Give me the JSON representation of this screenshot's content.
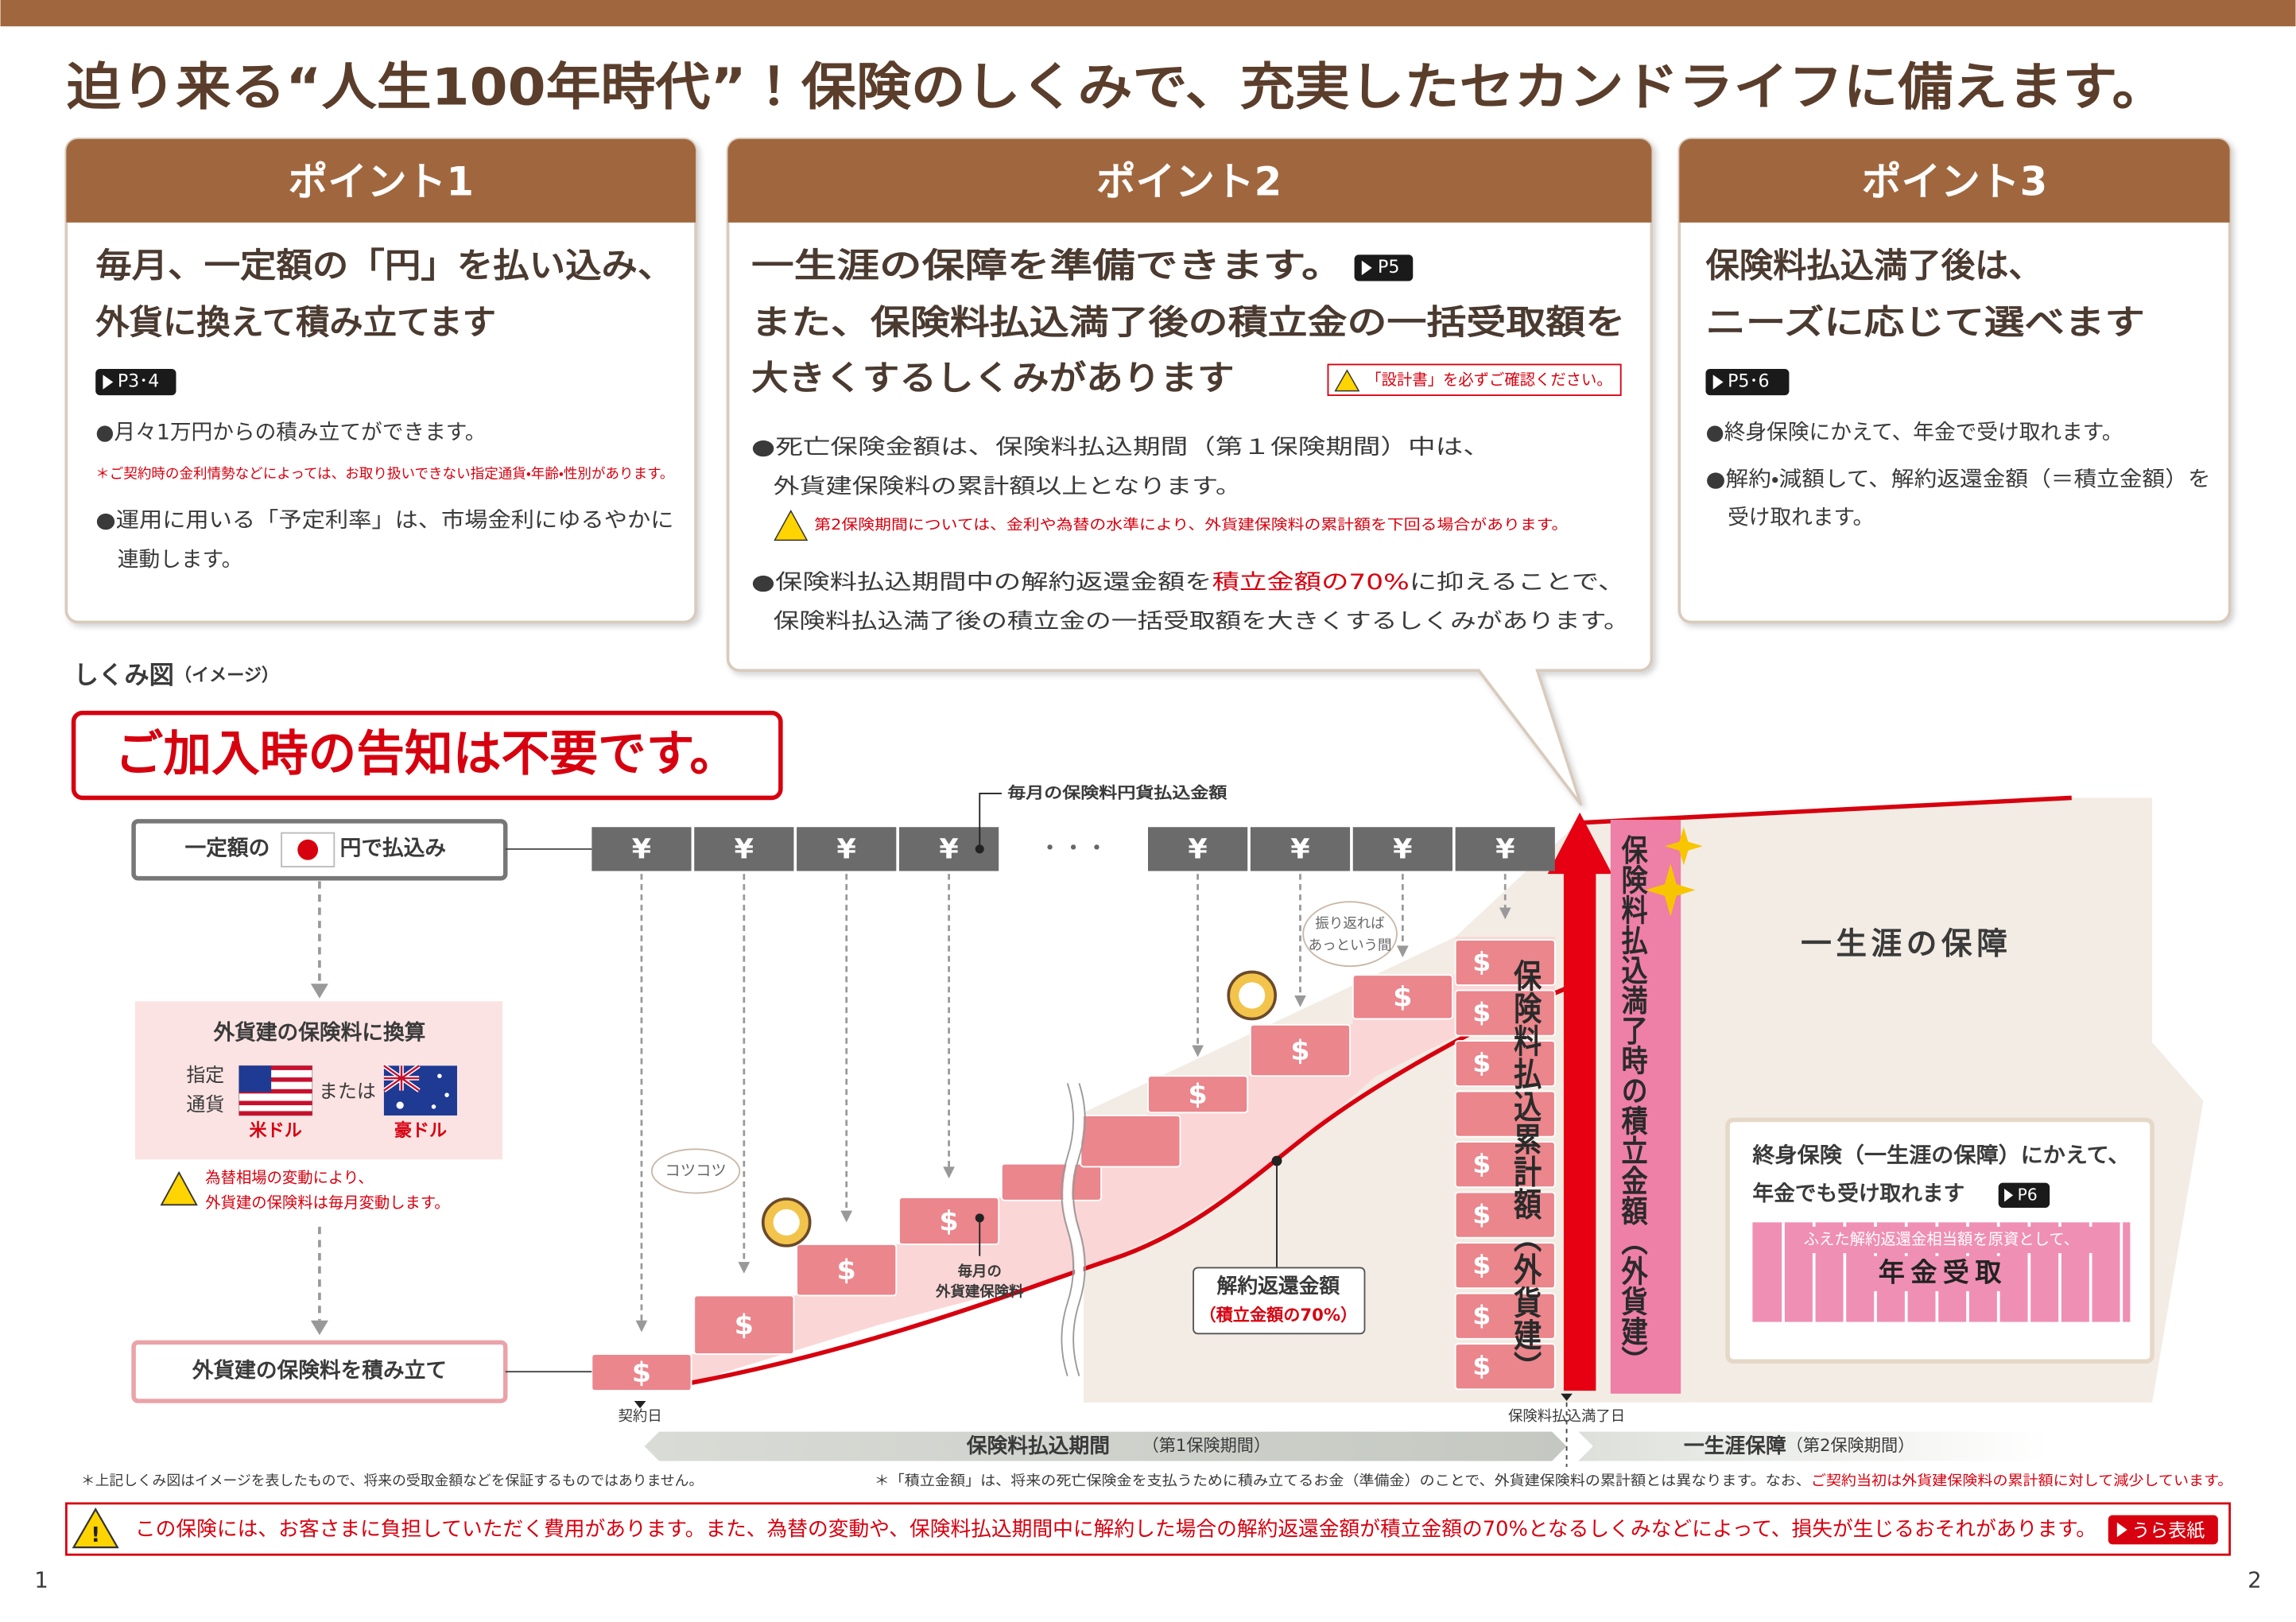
{
  "header": {
    "title": "迫り来る“人生100年時代”！保険のしくみで、充実したセカンドライフに備えます。"
  },
  "points": [
    {
      "label": "ポイント1",
      "heading": [
        "毎月、一定額の「円」を払い込み、",
        "外貨に換えて積み立てます"
      ],
      "ref": "P3･4",
      "bullet1": "●月々1万円からの積み立てができます。",
      "note": "＊ご契約時の金利情勢などによっては、お取り扱いできない指定通貨・年齢・性別があります。",
      "bullet2": [
        "●運用に用いる「予定利率」は、市場金利にゆるやかに",
        "連動します。"
      ]
    },
    {
      "label": "ポイント2",
      "heading": [
        "一生涯の保障を準備できます。",
        "また、保険料払込満了後の積立金の一括受取額を",
        "大きくするしくみがあります"
      ],
      "ref": "P5",
      "caution": "「設計書」を必ずご確認ください。",
      "bullet1": [
        "●死亡保険金額は、保険料払込期間（第１保険期間）中は、",
        "外貨建保険料の累計額以上となります。"
      ],
      "warning": "第2保険期間については、金利や為替の水準により、外貨建保険料の累計額を下回る場合があります。",
      "bullet2_line1": [
        "●保険料払込期間中の解約返還金額を",
        "積立金額の70%",
        "に抑えることで、"
      ],
      "bullet2_line2": "保険料払込満了後の積立金の一括受取額を大きくするしくみがあります。"
    },
    {
      "label": "ポイント3",
      "heading": [
        "保険料払込満了後は、",
        "ニーズに応じて選べます"
      ],
      "ref": "P5･6",
      "bullets": [
        "●終身保険にかえて、年金で受け取れます。",
        "●解約・減額して、解約返還金額（＝積立金額）を",
        "受け取れます。"
      ]
    }
  ],
  "diagram": {
    "title": "しくみ図",
    "title_note": "（イメージ）",
    "banner": "ご加入時の告知は不要です。",
    "pay_box": [
      "一定額の",
      "円で払込み"
    ],
    "yen": "¥",
    "dots": "・・・",
    "monthly_yen_label": "毎月の保険料円貨払込金額",
    "convert_title": "外貨建の保険料に換算",
    "currency_label": [
      "指定",
      "通貨"
    ],
    "or": "または",
    "usd": "米ドル",
    "aud": "豪ドル",
    "fx_note": [
      "為替相場の変動により、",
      "外貨建の保険料は毎月変動します。"
    ],
    "accumulate_box": "外貨建の保険料を積み立て",
    "dollar": "$",
    "bubble1": "コツコツ",
    "bubble2": [
      "振り返れば",
      "あっという間"
    ],
    "monthly_fc_label": [
      "毎月の",
      "外貨建保険料"
    ],
    "surrender": [
      "解約返還金額",
      "（積立金額の70%）"
    ],
    "cumulative": "保険料払込累計額（外貨建）",
    "maturity_amount": "保険料払込満了時の積立金額（外貨建）",
    "lifetime": "一生涯の保障",
    "annuity_box": {
      "lines": [
        "終身保険（一生涯の保障）にかえて、",
        "年金でも受け取れます"
      ],
      "ref": "P6",
      "band_note": "ふえた解約返還金相当額を原資として、",
      "band_title": "年金受取"
    },
    "timeline": {
      "start": "契約日",
      "end": "保険料払込満了日",
      "period1": "保険料払込期間",
      "period1_note": "（第1保険期間）",
      "period2": "一生涯保障",
      "period2_note": "（第2保険期間）"
    }
  },
  "footnotes": {
    "left": "＊上記しくみ図はイメージを表したもので、将来の受取金額などを保証するものではありません。",
    "right": "＊「積立金額」は、将来の死亡保険金を支払うために積み立てるお金（準備金）のことで、外貨建保険料の累計額とは異なります。なお、",
    "right_red": "ご契約当初は外貨建保険料の累計額に対して減少しています。"
  },
  "warning": {
    "text": "この保険には、お客さまに負担していただく費用があります。また、為替の変動や、保険料払込期間中に解約した場合の解約返還金額が積立金額の70%となるしくみなどによって、損失が生じるおそれがあります。",
    "link": "うら表紙"
  },
  "pages": [
    "1",
    "2"
  ]
}
